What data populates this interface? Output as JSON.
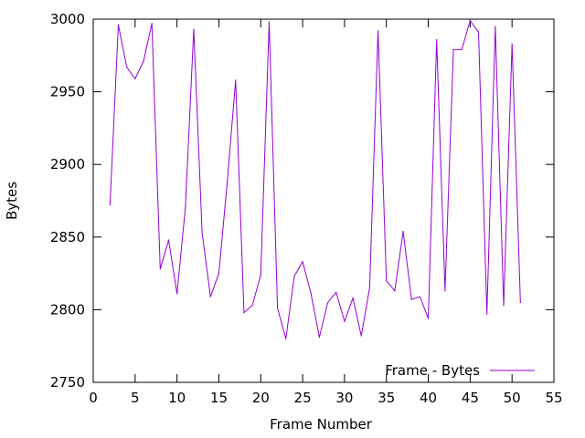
{
  "chart_data": {
    "type": "line",
    "xlabel": "Frame Number",
    "ylabel": "Bytes",
    "xlim": [
      0,
      55
    ],
    "ylim": [
      2750,
      3000
    ],
    "xticks": [
      0,
      5,
      10,
      15,
      20,
      25,
      30,
      35,
      40,
      45,
      50,
      55
    ],
    "yticks": [
      2750,
      2800,
      2850,
      2900,
      2950,
      3000
    ],
    "grid": false,
    "legend_position": "bottom-right",
    "series": [
      {
        "name": "Frame - Bytes",
        "color": "#9400d3",
        "x": [
          2,
          3,
          4,
          5,
          6,
          7,
          8,
          9,
          10,
          11,
          12,
          13,
          14,
          15,
          16,
          17,
          18,
          19,
          20,
          21,
          22,
          23,
          24,
          25,
          26,
          27,
          28,
          29,
          30,
          31,
          32,
          33,
          34,
          35,
          36,
          37,
          38,
          39,
          40,
          41,
          42,
          43,
          44,
          45,
          46,
          47,
          48,
          49,
          50,
          51
        ],
        "y": [
          2872,
          2996,
          2967,
          2959,
          2971,
          2997,
          2828,
          2848,
          2811,
          2870,
          2993,
          2853,
          2809,
          2825,
          2888,
          2958,
          2798,
          2803,
          2824,
          2998,
          2801,
          2780,
          2823,
          2833,
          2811,
          2781,
          2805,
          2812,
          2792,
          2808,
          2782,
          2815,
          2992,
          2820,
          2813,
          2854,
          2807,
          2809,
          2794,
          2986,
          2813,
          2979,
          2979,
          2999,
          2991,
          2797,
          2995,
          2803,
          2983,
          2805
        ]
      }
    ]
  }
}
